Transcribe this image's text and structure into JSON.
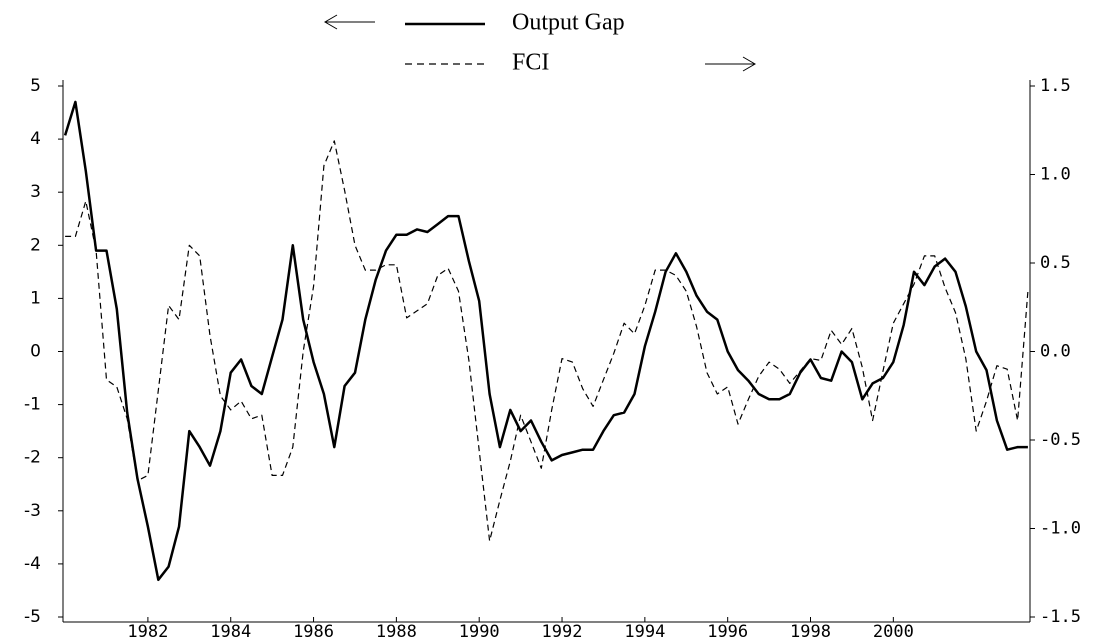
{
  "chart_data": {
    "type": "line",
    "x": [
      1980,
      1980.25,
      1980.5,
      1980.75,
      1981,
      1981.25,
      1981.5,
      1981.75,
      1982,
      1982.25,
      1982.5,
      1982.75,
      1983,
      1983.25,
      1983.5,
      1983.75,
      1984,
      1984.25,
      1984.5,
      1984.75,
      1985,
      1985.25,
      1985.5,
      1985.75,
      1986,
      1986.25,
      1986.5,
      1986.75,
      1987,
      1987.25,
      1987.5,
      1987.75,
      1988,
      1988.25,
      1988.5,
      1988.75,
      1989,
      1989.25,
      1989.5,
      1989.75,
      1990,
      1990.25,
      1990.5,
      1990.75,
      1991,
      1991.25,
      1991.5,
      1991.75,
      1992,
      1992.25,
      1992.5,
      1992.75,
      1993,
      1993.25,
      1993.5,
      1993.75,
      1994,
      1994.25,
      1994.5,
      1994.75,
      1995,
      1995.25,
      1995.5,
      1995.75,
      1996,
      1996.25,
      1996.5,
      1996.75,
      1997,
      1997.25,
      1997.5,
      1997.75,
      1998,
      1998.25,
      1998.5,
      1998.75,
      1999,
      1999.25,
      1999.5,
      1999.75,
      2000,
      2000.25,
      2000.5,
      2000.75,
      2001,
      2001.25,
      2001.5,
      2001.75,
      2002,
      2002.25,
      2002.5,
      2002.75,
      2003,
      2003.25
    ],
    "series": [
      {
        "name": "Output Gap",
        "color": "#000000",
        "dash": false,
        "values": [
          4.07,
          4.7,
          3.4,
          1.9,
          1.9,
          0.8,
          -1.15,
          -2.4,
          -3.3,
          -4.3,
          -4.05,
          -3.3,
          -1.5,
          -1.8,
          -2.15,
          -1.5,
          -0.4,
          -0.15,
          -0.65,
          -0.8,
          -0.1,
          0.6,
          2.0,
          0.6,
          -0.2,
          -0.8,
          -1.8,
          -0.65,
          -0.4,
          0.6,
          1.35,
          1.9,
          2.2,
          2.2,
          2.3,
          2.25,
          2.4,
          2.55,
          2.55,
          1.7,
          0.95,
          -0.8,
          -1.8,
          -1.1,
          -1.5,
          -1.3,
          -1.7,
          -2.05,
          -1.95,
          -1.9,
          -1.85,
          -1.85,
          -1.5,
          -1.2,
          -1.15,
          -0.8,
          0.1,
          0.75,
          1.5,
          1.85,
          1.5,
          1.05,
          0.75,
          0.6,
          0.0,
          -0.35,
          -0.55,
          -0.8,
          -0.9,
          -0.9,
          -0.8,
          -0.4,
          -0.15,
          -0.5,
          -0.55,
          0.0,
          -0.2,
          -0.9,
          -0.6,
          -0.5,
          -0.2,
          0.5,
          1.5,
          1.25,
          1.6,
          1.75,
          1.5,
          0.85,
          0.0,
          -0.35,
          -1.3,
          -1.85,
          -1.8,
          -1.8
        ]
      },
      {
        "name": "FCI",
        "color": "#000000",
        "dash": true,
        "axis": "y2",
        "values": [
          0.65,
          0.65,
          0.85,
          0.57,
          -0.16,
          -0.2,
          -0.38,
          -0.73,
          -0.7,
          -0.22,
          0.26,
          0.18,
          0.6,
          0.54,
          0.09,
          -0.25,
          -0.33,
          -0.28,
          -0.38,
          -0.36,
          -0.7,
          -0.7,
          -0.54,
          0.0,
          0.37,
          1.05,
          1.19,
          0.91,
          0.6,
          0.46,
          0.46,
          0.49,
          0.49,
          0.19,
          0.23,
          0.27,
          0.43,
          0.47,
          0.34,
          -0.05,
          -0.56,
          -1.07,
          -0.84,
          -0.62,
          -0.36,
          -0.51,
          -0.66,
          -0.33,
          -0.04,
          -0.06,
          -0.21,
          -0.31,
          -0.16,
          -0.01,
          0.16,
          0.1,
          0.26,
          0.46,
          0.46,
          0.43,
          0.34,
          0.14,
          -0.12,
          -0.24,
          -0.2,
          -0.41,
          -0.27,
          -0.14,
          -0.06,
          -0.1,
          -0.18,
          -0.11,
          -0.04,
          -0.05,
          0.12,
          0.04,
          0.13,
          -0.09,
          -0.39,
          -0.11,
          0.16,
          0.27,
          0.38,
          0.54,
          0.54,
          0.36,
          0.22,
          -0.04,
          -0.45,
          -0.28,
          -0.08,
          -0.1,
          -0.39,
          0.34
        ]
      }
    ],
    "xlim": [
      1979.95,
      2003.3
    ],
    "xticks": [
      1982,
      1984,
      1986,
      1988,
      1990,
      1992,
      1994,
      1996,
      1998,
      2000
    ],
    "ylim": [
      -5,
      5
    ],
    "yticks": [
      -5,
      -4,
      -3,
      -2,
      -1,
      0,
      1,
      2,
      3,
      4,
      5
    ],
    "y2lim": [
      -1.5,
      1.5
    ],
    "y2ticks": [
      -1.5,
      {
        "value": -1.0,
        "label": "-1.0"
      },
      -0.5,
      {
        "value": 0.0,
        "label": "0.0"
      },
      0.5,
      {
        "value": 1.0,
        "label": "1.0"
      },
      1.5
    ],
    "legend": "top-center"
  }
}
